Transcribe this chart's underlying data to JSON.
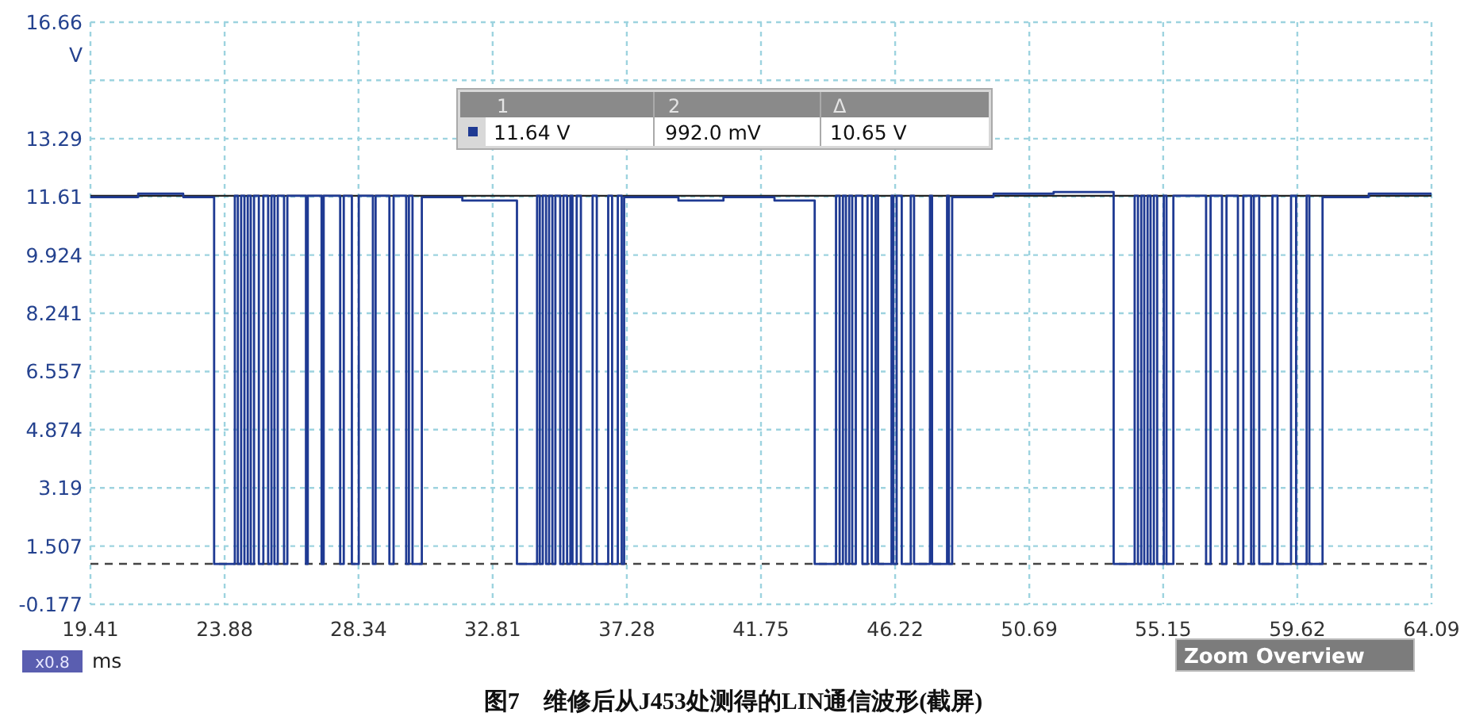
{
  "chart_data": {
    "type": "step",
    "title": "图7　维修后从J453处测得的LIN通信波形(截屏)",
    "xlabel": "ms",
    "ylabel": "V",
    "xlim": [
      19.41,
      64.09
    ],
    "ylim": [
      -0.177,
      16.66
    ],
    "xticks": [
      19.41,
      23.88,
      28.34,
      32.81,
      37.28,
      41.75,
      46.22,
      50.69,
      55.15,
      59.62,
      64.09
    ],
    "yticks": [
      -0.177,
      1.507,
      3.19,
      4.874,
      6.557,
      8.241,
      9.924,
      11.61,
      13.29,
      {
        "value": 14.98,
        "label": null
      },
      16.66
    ],
    "grid": true,
    "ref_lines": [
      {
        "axis": "y",
        "value": 11.64,
        "label": null,
        "color": "#222222",
        "line_style": "solid"
      },
      {
        "axis": "y",
        "value": 0.992,
        "label": null,
        "color": "#444444",
        "line_style": "dashed"
      }
    ],
    "annotations": [
      "x0.8",
      "Zoom Overview",
      "1",
      "2",
      "Δ",
      "11.64 V",
      "992.0 mV",
      "10.65 V"
    ],
    "series": [
      {
        "color": "#1f3a93",
        "x": [
          19.41,
          21.0,
          22.5,
          23.53,
          24.22,
          24.32,
          24.43,
          24.54,
          24.65,
          24.75,
          24.86,
          25.02,
          25.17,
          25.33,
          25.44,
          25.54,
          25.65,
          25.86,
          25.97,
          26.59,
          26.65,
          27.11,
          27.18,
          27.73,
          27.85,
          28.12,
          28.35,
          28.82,
          28.91,
          29.37,
          29.51,
          29.93,
          30.02,
          30.14,
          30.45,
          31.8,
          33.62,
          34.29,
          34.38,
          34.48,
          34.59,
          34.69,
          34.8,
          34.9,
          35.06,
          35.17,
          35.29,
          35.4,
          35.47,
          35.61,
          35.75,
          36.14,
          36.28,
          36.66,
          36.79,
          36.98,
          37.11,
          37.19,
          39.0,
          40.5,
          42.2,
          43.54,
          44.25,
          44.37,
          44.48,
          44.58,
          44.69,
          44.79,
          44.91,
          45.13,
          45.3,
          45.44,
          45.57,
          45.65,
          46.1,
          46.16,
          46.27,
          46.44,
          46.74,
          46.85,
          47.38,
          47.45,
          47.95,
          48.01,
          48.12,
          49.5,
          51.5,
          53.5,
          54.2,
          54.31,
          54.42,
          54.52,
          54.63,
          54.73,
          54.84,
          54.95,
          55.17,
          55.26,
          55.49,
          56.58,
          56.73,
          57.11,
          57.26,
          57.64,
          57.82,
          58.08,
          58.17,
          58.35,
          58.79,
          58.96,
          59.41,
          59.58,
          59.93,
          60.02,
          60.46,
          62.0,
          64.09
        ],
        "values": [
          11.6,
          11.7,
          11.6,
          0.99,
          11.64,
          0.99,
          11.64,
          0.99,
          11.64,
          0.99,
          11.64,
          0.99,
          11.64,
          0.99,
          11.64,
          0.99,
          11.64,
          0.99,
          11.64,
          0.99,
          11.64,
          0.99,
          11.64,
          0.99,
          11.64,
          0.99,
          11.64,
          0.99,
          11.64,
          0.99,
          11.64,
          0.99,
          11.64,
          0.99,
          11.6,
          11.5,
          0.99,
          11.64,
          0.99,
          11.64,
          0.99,
          11.64,
          0.99,
          11.64,
          0.99,
          11.64,
          0.99,
          11.64,
          0.99,
          11.64,
          0.99,
          11.64,
          0.99,
          11.64,
          0.99,
          11.64,
          0.99,
          11.6,
          11.5,
          11.6,
          11.5,
          0.99,
          11.64,
          0.99,
          11.64,
          0.99,
          11.64,
          0.99,
          11.64,
          0.99,
          11.64,
          0.99,
          11.64,
          0.99,
          11.64,
          0.99,
          11.64,
          0.99,
          11.64,
          0.99,
          11.64,
          0.99,
          11.64,
          0.99,
          11.6,
          11.7,
          11.75,
          0.99,
          11.64,
          0.99,
          11.64,
          0.99,
          11.64,
          0.99,
          11.64,
          0.99,
          11.64,
          0.99,
          11.64,
          0.99,
          11.64,
          0.99,
          11.64,
          0.99,
          11.64,
          0.99,
          11.64,
          0.99,
          11.64,
          0.99,
          11.64,
          0.99,
          11.64,
          0.99,
          11.6,
          11.7,
          11.7
        ]
      }
    ]
  }
}
